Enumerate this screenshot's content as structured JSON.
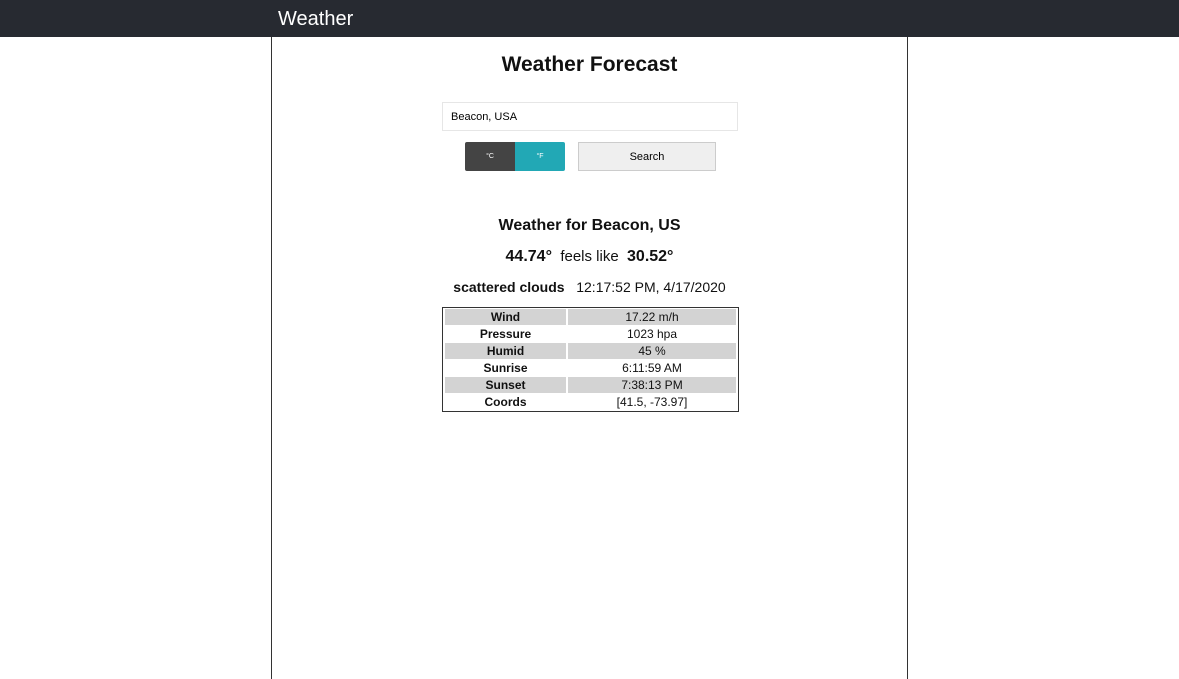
{
  "nav": {
    "brand": "Weather"
  },
  "page": {
    "title": "Weather Forecast"
  },
  "search": {
    "value": "Beacon, USA",
    "celsius": "°C",
    "fahrenheit": "°F",
    "button": "Search"
  },
  "result": {
    "heading": "Weather for Beacon, US",
    "temp": "44.74°",
    "feels_label": "feels like",
    "feels": "30.52°",
    "description": "scattered clouds",
    "time": "12:17:52 PM, 4/17/2020",
    "rows": [
      {
        "k": "Wind",
        "v": "17.22 m/h"
      },
      {
        "k": "Pressure",
        "v": "1023 hpa"
      },
      {
        "k": "Humid",
        "v": "45 %"
      },
      {
        "k": "Sunrise",
        "v": "6:11:59 AM"
      },
      {
        "k": "Sunset",
        "v": "7:38:13 PM"
      },
      {
        "k": "Coords",
        "v": "[41.5, -73.97]"
      }
    ]
  },
  "colors": {
    "nav": "#272a31",
    "fahrenheit_active": "#22a8b5",
    "celsius": "#444444"
  }
}
